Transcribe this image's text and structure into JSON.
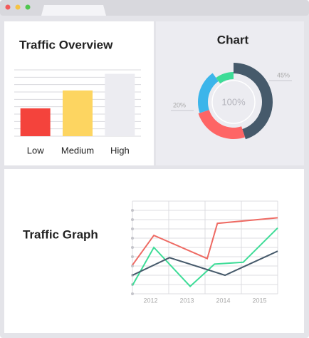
{
  "chart_data": [
    {
      "type": "bar",
      "title": "Traffic Overview",
      "categories": [
        "Low",
        "Medium",
        "High"
      ],
      "values": [
        4.2,
        6.9,
        9.4
      ],
      "colors": [
        "#f4433c",
        "#fdd561",
        "#ececf1"
      ],
      "ylim": [
        0,
        10
      ]
    },
    {
      "type": "donut",
      "title": "Chart",
      "center_label": "100%",
      "values": [
        45,
        25,
        20,
        10
      ],
      "value_labels": [
        "45%",
        null,
        "20%",
        null
      ],
      "colors": [
        "#465a6b",
        "#fe6565",
        "#3cb5ea",
        "#3ddc97"
      ]
    },
    {
      "type": "line",
      "title": "Traffic Graph",
      "xlim": [
        2011.5,
        2015.5
      ],
      "xticks": [
        2012,
        2013,
        2014,
        2015
      ],
      "ylim": [
        0,
        10
      ],
      "series": [
        {
          "color": "#ee6a63",
          "x": [
            2011.5,
            2012.09,
            2013.56,
            2013.84,
            2015.5
          ],
          "values": [
            3.1,
            6.3,
            3.8,
            7.6,
            8.2
          ]
        },
        {
          "color": "#3ddc97",
          "x": [
            2011.5,
            2012.09,
            2013.09,
            2013.76,
            2014.55,
            2015.5
          ],
          "values": [
            0.9,
            5.0,
            0.8,
            3.2,
            3.4,
            7.1
          ]
        },
        {
          "color": "#465a6b",
          "x": [
            2011.5,
            2012.52,
            2014.05,
            2015.5
          ],
          "values": [
            2.0,
            3.9,
            2.0,
            4.6
          ]
        }
      ]
    }
  ]
}
